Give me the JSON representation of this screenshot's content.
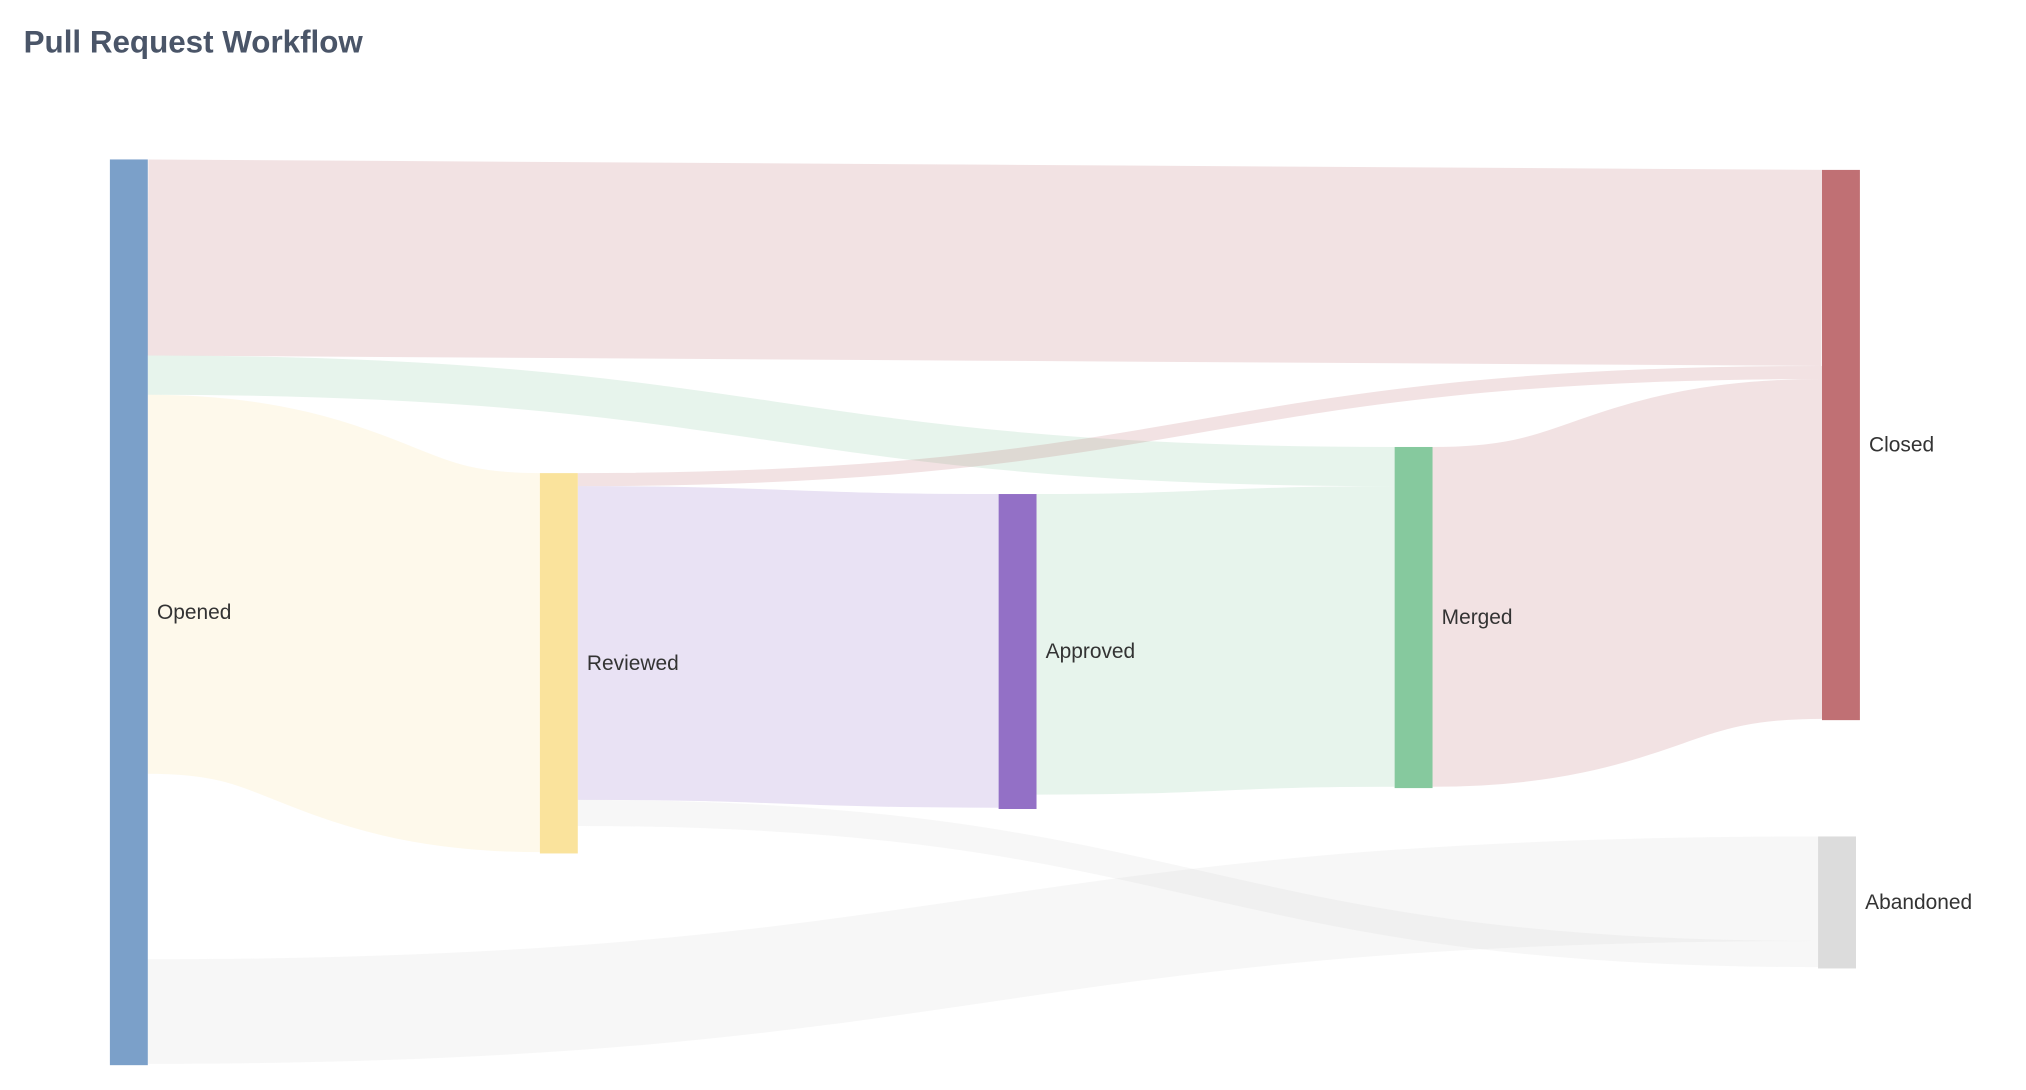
{
  "chart_data": {
    "type": "sankey",
    "title": "Pull Request Workflow",
    "nodes": [
      {
        "id": "Opened",
        "label": "Opened",
        "color": "#7ba0c9"
      },
      {
        "id": "Reviewed",
        "label": "Reviewed",
        "color": "#fae39c"
      },
      {
        "id": "Approved",
        "label": "Approved",
        "color": "#9370c6"
      },
      {
        "id": "Merged",
        "label": "Merged",
        "color": "#86c99e"
      },
      {
        "id": "Closed",
        "label": "Closed",
        "color": "#c07074"
      },
      {
        "id": "Abandoned",
        "label": "Abandoned",
        "color": "#dcdcdc"
      }
    ],
    "links": [
      {
        "source": "Opened",
        "target": "Closed",
        "value": 15
      },
      {
        "source": "Opened",
        "target": "Merged",
        "value": 3
      },
      {
        "source": "Opened",
        "target": "Reviewed",
        "value": 29
      },
      {
        "source": "Opened",
        "target": "Abandoned",
        "value": 8
      },
      {
        "source": "Reviewed",
        "target": "Closed",
        "value": 1
      },
      {
        "source": "Reviewed",
        "target": "Approved",
        "value": 24
      },
      {
        "source": "Reviewed",
        "target": "Abandoned",
        "value": 2
      },
      {
        "source": "Approved",
        "target": "Merged",
        "value": 23
      },
      {
        "source": "Merged",
        "target": "Closed",
        "value": 26
      }
    ],
    "link_coloring": "target node color, translucent"
  }
}
